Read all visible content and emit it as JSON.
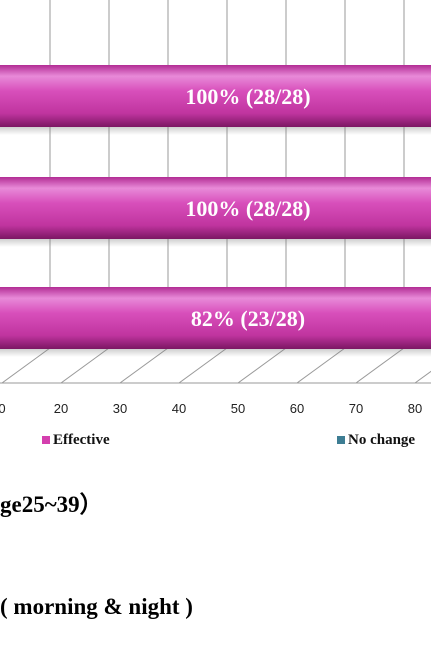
{
  "chart_data": {
    "type": "bar",
    "orientation": "horizontal",
    "style": "3d-cylinder",
    "x_ticks": [
      "0",
      "20",
      "30",
      "40",
      "50",
      "60",
      "70",
      "80"
    ],
    "grid": true,
    "series": [
      {
        "name": "Effective",
        "color": "#d43fae"
      },
      {
        "name": "No change",
        "color": "#3d7d93"
      }
    ],
    "bars": [
      {
        "label": "100% (28/28)",
        "value": 100
      },
      {
        "label": "100% (28/28)",
        "value": 100
      },
      {
        "label": "82% (23/28)",
        "value": 82
      }
    ],
    "legend_position": "bottom"
  },
  "captions": {
    "age": "ge25~39）",
    "time": "( morning & night )"
  }
}
